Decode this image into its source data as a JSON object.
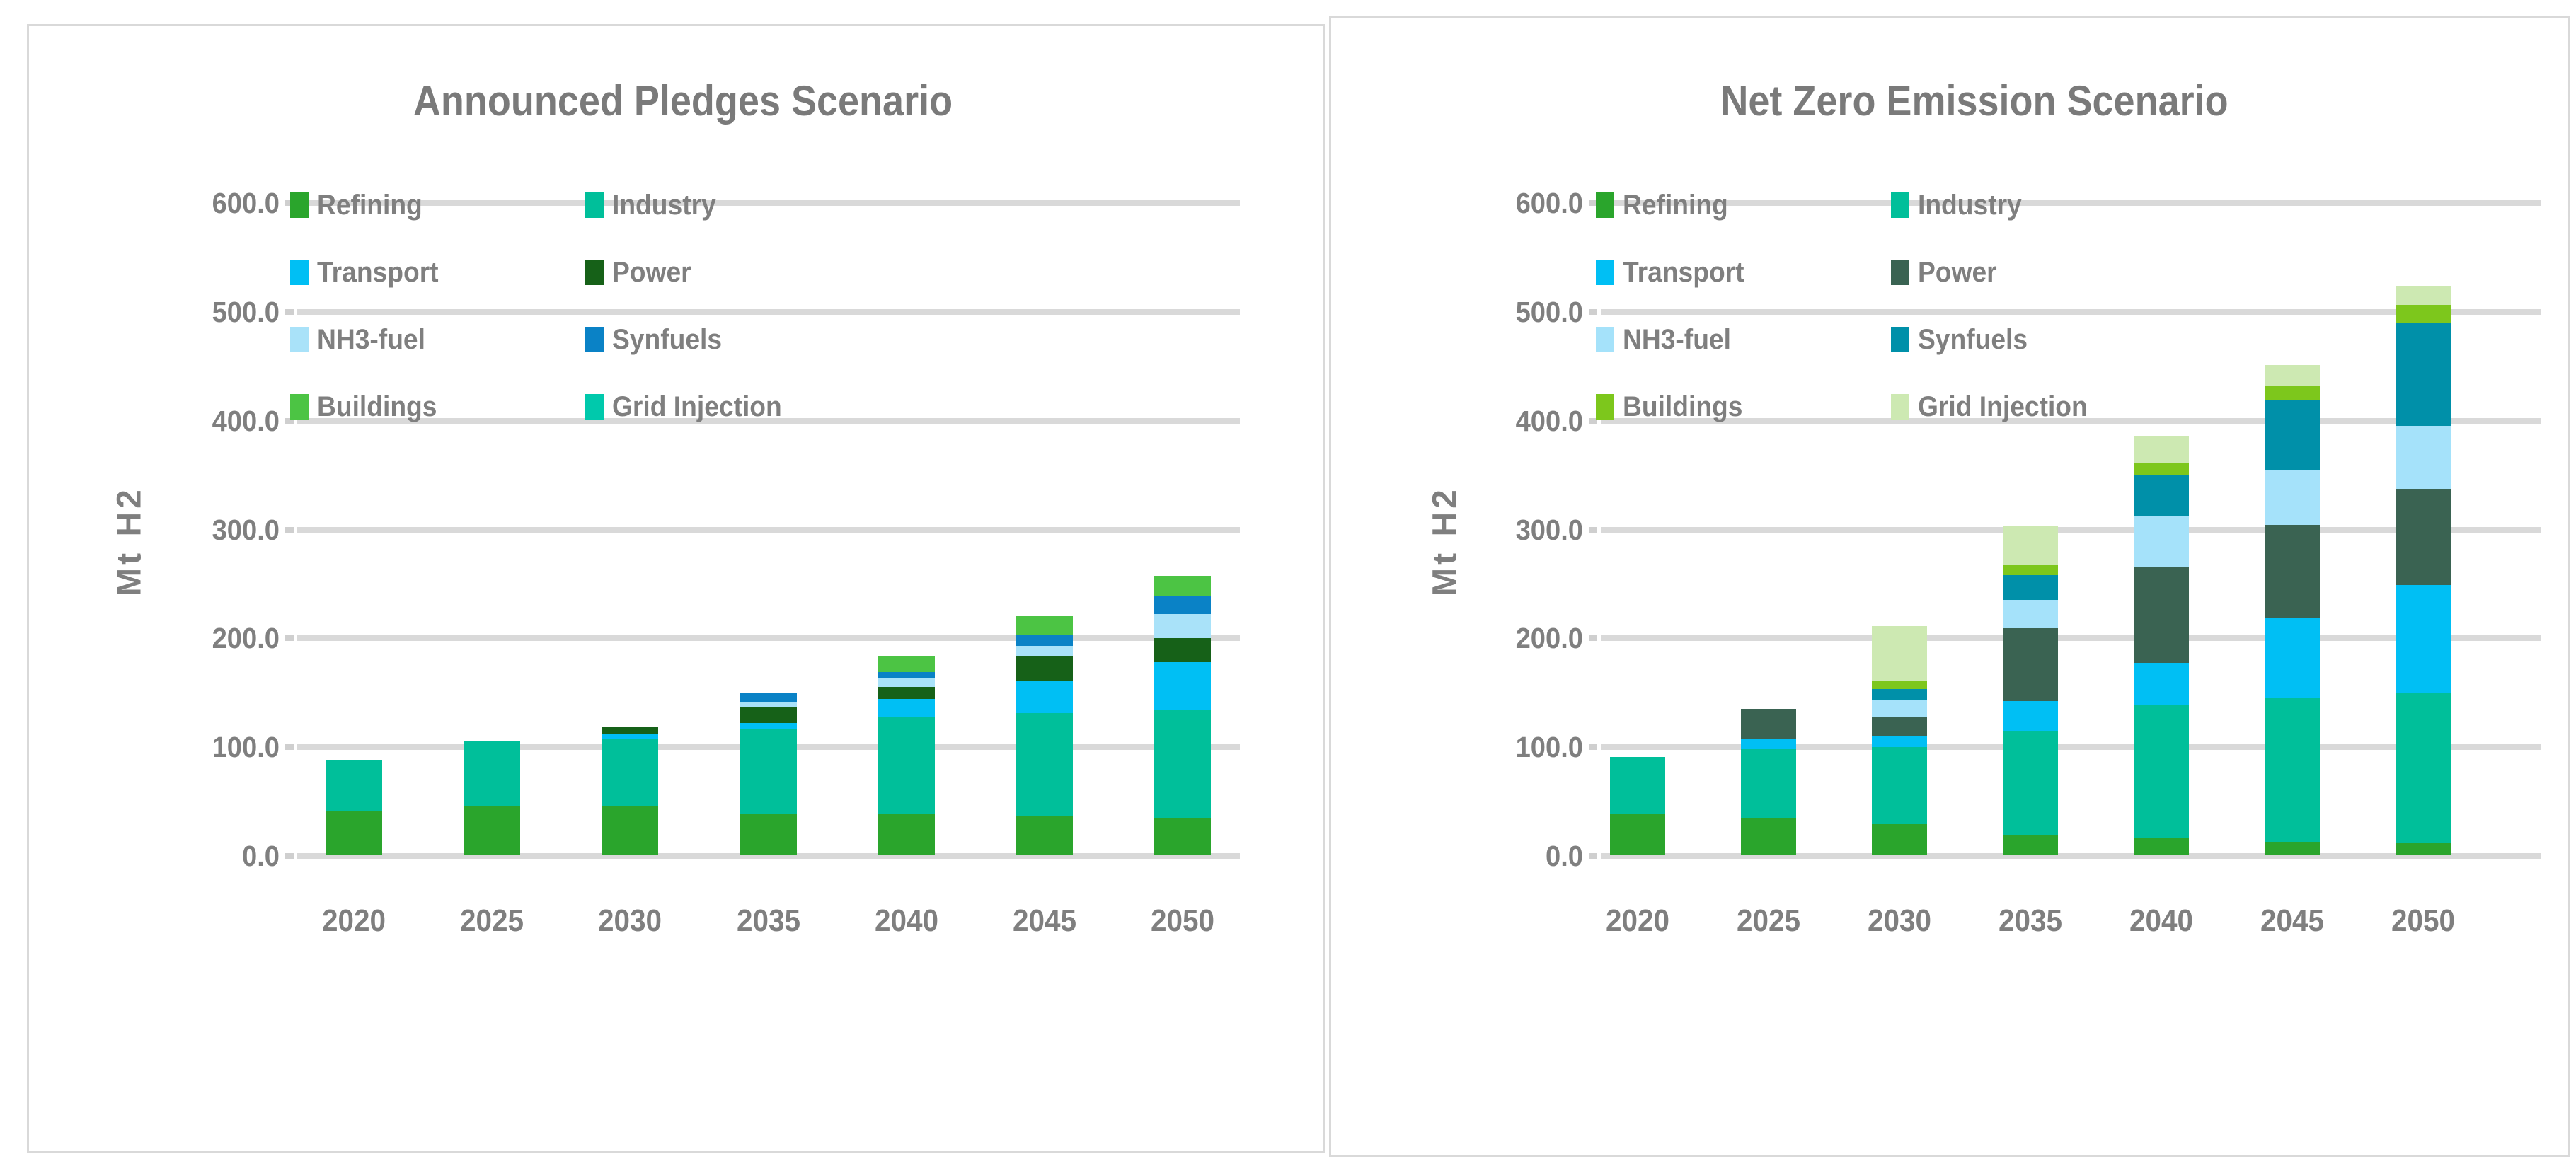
{
  "page": {
    "background": "#ffffff",
    "panel_border_color": "#d9d9d9",
    "grid_color": "#d9d9d9",
    "text_color": "#7f7f7f"
  },
  "chart_data": [
    {
      "type": "bar",
      "stacked": true,
      "title": "Announced Pledges Scenario",
      "ylabel": "Mt H2",
      "xlabel": "",
      "ylim": [
        0,
        600
      ],
      "ytick_labels": [
        "0.0",
        "100.0",
        "200.0",
        "300.0",
        "400.0",
        "500.0",
        "600.0"
      ],
      "grid": true,
      "legend_position": "inside-top-left",
      "categories": [
        "2020",
        "2025",
        "2030",
        "2035",
        "2040",
        "2045",
        "2050"
      ],
      "series": [
        {
          "name": "Refining",
          "color": "#2aa52c",
          "values": [
            40,
            45,
            44,
            38,
            38,
            35,
            33
          ]
        },
        {
          "name": "Industry",
          "color": "#00bf9a",
          "values": [
            47,
            59,
            62,
            77,
            88,
            95,
            100
          ]
        },
        {
          "name": "Transport",
          "color": "#00bff4",
          "values": [
            0,
            0,
            5,
            6,
            17,
            29,
            44
          ]
        },
        {
          "name": "Power",
          "color": "#166118",
          "values": [
            0,
            0,
            7,
            14,
            11,
            23,
            22
          ]
        },
        {
          "name": "NH3-fuel",
          "color": "#a9e2f9",
          "values": [
            0,
            0,
            0,
            5,
            8,
            10,
            22
          ]
        },
        {
          "name": "Synfuels",
          "color": "#0a82c6",
          "values": [
            0,
            0,
            0,
            8,
            6,
            10,
            17
          ]
        },
        {
          "name": "Buildings",
          "color": "#4cc444",
          "values": [
            0,
            0,
            0,
            0,
            15,
            17,
            18
          ]
        },
        {
          "name": "Grid Injection",
          "color": "#00c9ac",
          "values": [
            0,
            0,
            0,
            0,
            0,
            0,
            0
          ]
        }
      ],
      "totals": [
        87,
        104,
        118,
        148,
        183,
        219,
        256
      ]
    },
    {
      "type": "bar",
      "stacked": true,
      "title": "Net Zero Emission Scenario",
      "ylabel": "Mt H2",
      "xlabel": "",
      "ylim": [
        0,
        600
      ],
      "ytick_labels": [
        "0.0",
        "100.0",
        "200.0",
        "300.0",
        "400.0",
        "500.0",
        "600.0"
      ],
      "grid": true,
      "legend_position": "inside-top-left",
      "categories": [
        "2020",
        "2025",
        "2030",
        "2035",
        "2040",
        "2045",
        "2050"
      ],
      "series": [
        {
          "name": "Refining",
          "color": "#2aa52c",
          "values": [
            38,
            33,
            28,
            18,
            15,
            12,
            11
          ]
        },
        {
          "name": "Industry",
          "color": "#00bf9a",
          "values": [
            52,
            64,
            71,
            96,
            122,
            132,
            137
          ]
        },
        {
          "name": "Transport",
          "color": "#00bff4",
          "values": [
            0,
            9,
            10,
            27,
            39,
            73,
            100
          ]
        },
        {
          "name": "Power",
          "color": "#3a6352",
          "values": [
            0,
            28,
            18,
            67,
            88,
            86,
            88
          ]
        },
        {
          "name": "NH3-fuel",
          "color": "#a5e2fa",
          "values": [
            0,
            0,
            15,
            26,
            47,
            50,
            58
          ]
        },
        {
          "name": "Synfuels",
          "color": "#0090a9",
          "values": [
            0,
            0,
            10,
            23,
            38,
            65,
            95
          ]
        },
        {
          "name": "Buildings",
          "color": "#7dc71c",
          "values": [
            0,
            0,
            8,
            9,
            11,
            13,
            16
          ]
        },
        {
          "name": "Grid Injection",
          "color": "#cde9b2",
          "values": [
            0,
            0,
            50,
            36,
            24,
            19,
            18
          ]
        }
      ],
      "totals": [
        90,
        134,
        210,
        302,
        384,
        450,
        523
      ]
    }
  ]
}
